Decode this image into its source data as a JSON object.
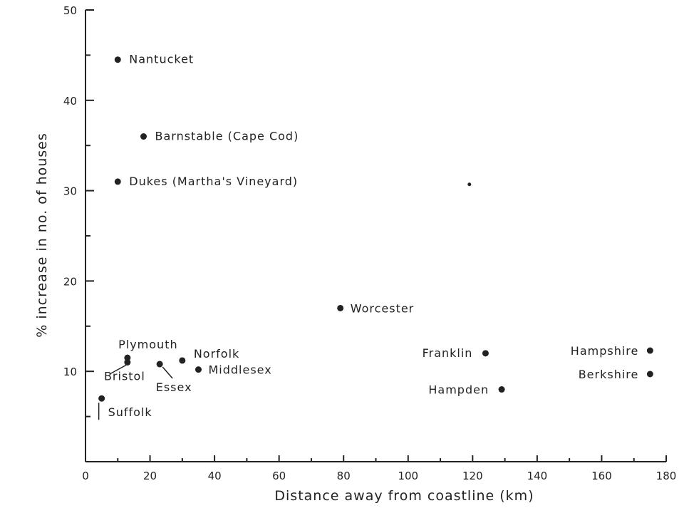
{
  "chart_data": {
    "type": "scatter",
    "title": "",
    "xlabel": "Distance away from coastline (km)",
    "ylabel": "% increase in no. of houses",
    "xlim": [
      0,
      180
    ],
    "ylim": [
      0,
      50
    ],
    "xticks": [
      0,
      20,
      40,
      60,
      80,
      100,
      120,
      140,
      160,
      180
    ],
    "yticks": [
      10,
      20,
      30,
      40,
      50
    ],
    "xtick_labels": [
      "0",
      "20",
      "40",
      "60",
      "80",
      "100",
      "120",
      "140",
      "160",
      "180"
    ],
    "ytick_labels": [
      "10",
      "20",
      "30",
      "40",
      "50"
    ],
    "grid": false,
    "points": [
      {
        "label": "Nantucket",
        "x": 10,
        "y": 44.5
      },
      {
        "label": "Barnstable (Cape Cod)",
        "x": 18,
        "y": 36
      },
      {
        "label": "Dukes (Martha's Vineyard)",
        "x": 10,
        "y": 31
      },
      {
        "label": "Worcester",
        "x": 79,
        "y": 17
      },
      {
        "label": "Plymouth",
        "x": 13,
        "y": 11.5
      },
      {
        "label": "Bristol",
        "x": 13,
        "y": 11
      },
      {
        "label": "Norfolk",
        "x": 30,
        "y": 11.2
      },
      {
        "label": "Essex",
        "x": 23,
        "y": 10.8
      },
      {
        "label": "Middlesex",
        "x": 35,
        "y": 10.2
      },
      {
        "label": "Suffolk",
        "x": 5,
        "y": 7
      },
      {
        "label": "Franklin",
        "x": 124,
        "y": 12
      },
      {
        "label": "Hampden",
        "x": 129,
        "y": 8
      },
      {
        "label": "Hampshire",
        "x": 175,
        "y": 12.3
      },
      {
        "label": "Berkshire",
        "x": 175,
        "y": 9.7
      },
      {
        "label": "",
        "x": 119,
        "y": 30.7
      }
    ]
  }
}
